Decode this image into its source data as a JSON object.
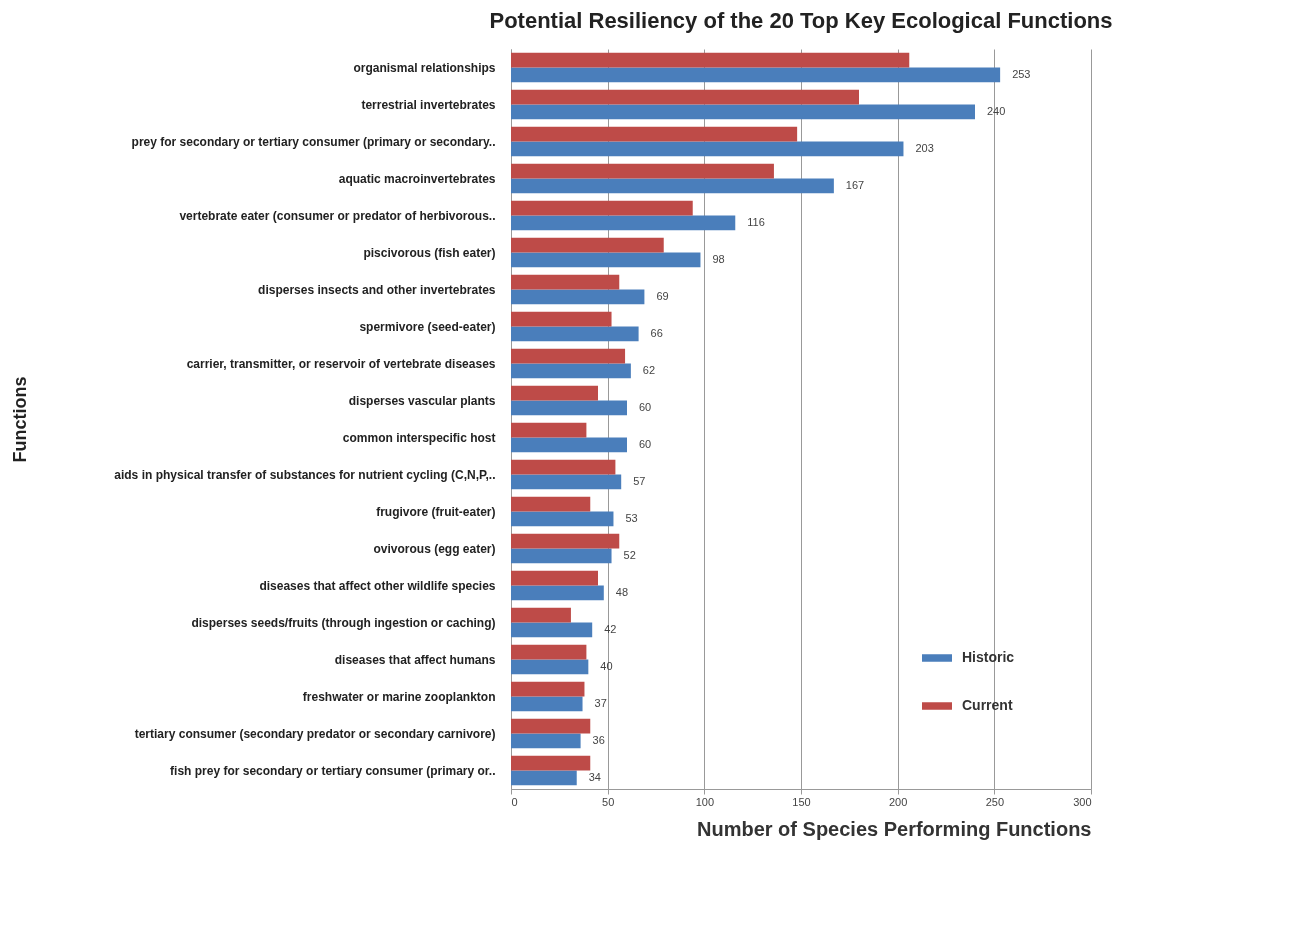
{
  "chart_data": {
    "type": "bar",
    "orientation": "horizontal",
    "title": "Potential Resiliency of the 20 Top Key Ecological Functions",
    "xlabel": "Number of Species Performing Functions",
    "ylabel": "Functions",
    "categories": [
      "organismal relationships",
      "terrestrial invertebrates",
      "prey for secondary or tertiary consumer (primary or secondary..",
      "aquatic macroinvertebrates",
      "vertebrate eater (consumer or predator of herbivorous..",
      "piscivorous (fish eater)",
      "disperses insects and other invertebrates",
      "spermivore (seed-eater)",
      "carrier, transmitter, or reservoir of vertebrate diseases",
      "disperses vascular plants",
      "common interspecific host",
      "aids in physical transfer of substances for nutrient cycling (C,N,P,..",
      "frugivore (fruit-eater)",
      "ovivorous (egg eater)",
      "diseases that affect other wildlife species",
      "disperses seeds/fruits (through ingestion or caching)",
      "diseases that affect humans",
      "freshwater or marine zooplankton",
      "tertiary consumer (secondary predator or secondary carnivore)",
      "fish prey for secondary or tertiary consumer (primary or.."
    ],
    "series": [
      {
        "name": "Historic",
        "color": "#4a7ebb",
        "values": [
          253,
          240,
          203,
          167,
          116,
          98,
          69,
          66,
          62,
          60,
          60,
          57,
          53,
          52,
          48,
          42,
          40,
          37,
          36,
          34
        ],
        "value_labels": [
          "253",
          "240",
          "203",
          "167",
          "116",
          "98",
          "69",
          "66",
          "62",
          "60",
          "60",
          "57",
          "53",
          "52",
          "48",
          "42",
          "40",
          "37",
          "36",
          "34"
        ]
      },
      {
        "name": "Current",
        "color": "#be4b48",
        "values": [
          206,
          180,
          148,
          136,
          94,
          79,
          56,
          52,
          59,
          45,
          39,
          54,
          41,
          56,
          45,
          31,
          39,
          38,
          41,
          41
        ]
      }
    ],
    "xlim": [
      0,
      300
    ],
    "xticks": [
      0,
      50,
      100,
      150,
      200,
      250,
      300
    ],
    "grid": "x",
    "legend": "bottom right"
  }
}
